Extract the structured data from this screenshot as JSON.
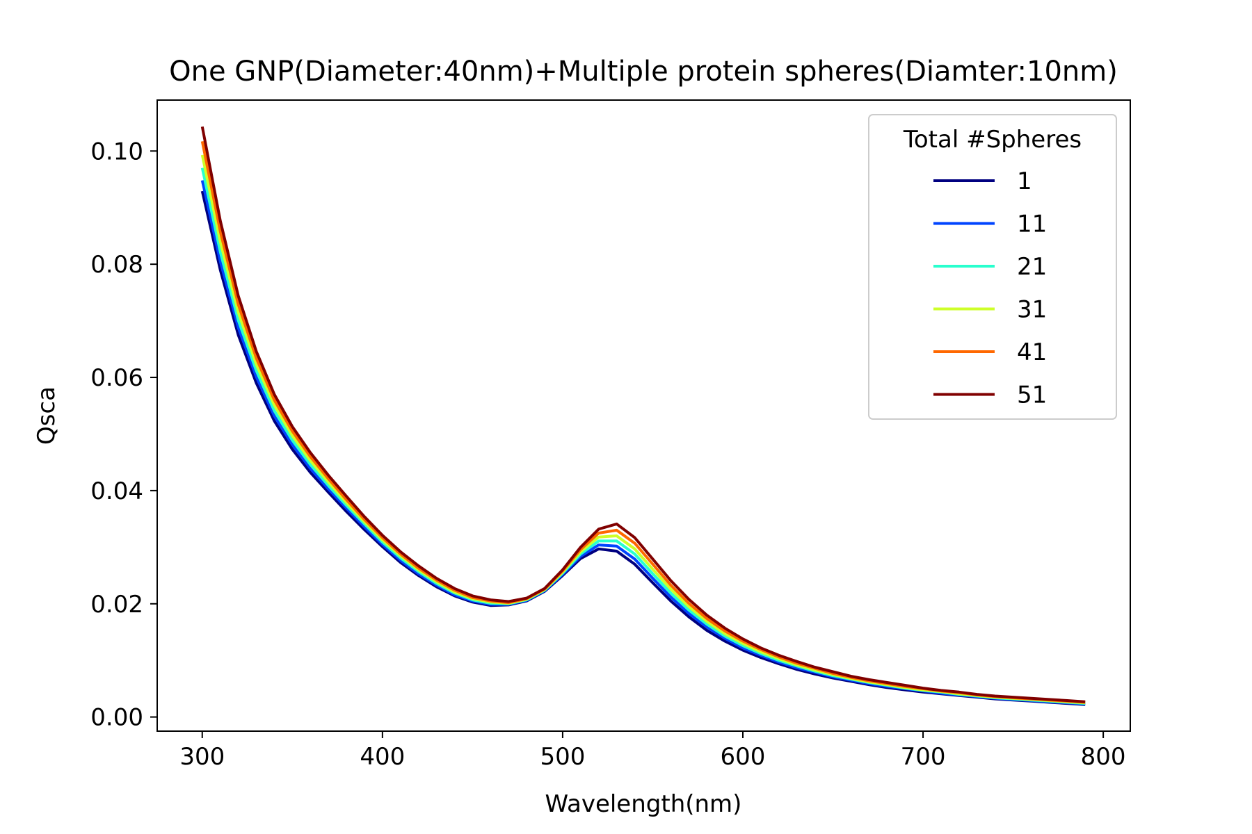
{
  "chart_data": {
    "type": "line",
    "title": "One GNP(Diameter:40nm)+Multiple protein spheres(Diamter:10nm)",
    "xlabel": "Wavelength(nm)",
    "ylabel": "Qsca",
    "xlim": [
      275,
      815
    ],
    "ylim": [
      -0.0025,
      0.109
    ],
    "xticks": [
      300,
      400,
      500,
      600,
      700,
      800
    ],
    "xtick_labels": [
      "300",
      "400",
      "500",
      "600",
      "700",
      "800"
    ],
    "yticks": [
      0.0,
      0.02,
      0.04,
      0.06,
      0.08,
      0.1
    ],
    "ytick_labels": [
      "0.00",
      "0.02",
      "0.04",
      "0.06",
      "0.08",
      "0.10"
    ],
    "grid": false,
    "legend": {
      "title": "Total #Spheres",
      "position": "top-right"
    },
    "x": [
      300,
      310,
      320,
      330,
      340,
      350,
      360,
      370,
      380,
      390,
      400,
      410,
      420,
      430,
      440,
      450,
      460,
      470,
      480,
      490,
      500,
      510,
      520,
      530,
      540,
      550,
      560,
      570,
      580,
      590,
      600,
      610,
      620,
      630,
      640,
      650,
      660,
      670,
      680,
      690,
      700,
      710,
      720,
      730,
      740,
      750,
      760,
      770,
      780,
      790
    ],
    "series": [
      {
        "name": "1",
        "color": "#000080",
        "values": [
          0.0929,
          0.079,
          0.0675,
          0.059,
          0.0523,
          0.0473,
          0.0432,
          0.0397,
          0.0363,
          0.0331,
          0.0301,
          0.0273,
          0.025,
          0.023,
          0.0214,
          0.0203,
          0.0197,
          0.0198,
          0.0205,
          0.0222,
          0.025,
          0.028,
          0.0297,
          0.0293,
          0.027,
          0.0237,
          0.0205,
          0.0177,
          0.0153,
          0.0134,
          0.0118,
          0.0105,
          0.0094,
          0.0084,
          0.0076,
          0.0069,
          0.0063,
          0.0057,
          0.0052,
          0.0048,
          0.0044,
          0.0041,
          0.0038,
          0.0035,
          0.0032,
          0.003,
          0.0028,
          0.0026,
          0.0024,
          0.0022
        ]
      },
      {
        "name": "11",
        "color": "#0044ff",
        "values": [
          0.0948,
          0.0805,
          0.0688,
          0.0601,
          0.0532,
          0.0481,
          0.0439,
          0.0403,
          0.0369,
          0.0336,
          0.0305,
          0.0277,
          0.0253,
          0.0233,
          0.0216,
          0.0205,
          0.0199,
          0.0199,
          0.0206,
          0.0223,
          0.0252,
          0.0284,
          0.0304,
          0.0302,
          0.0279,
          0.0245,
          0.0212,
          0.0183,
          0.0159,
          0.0139,
          0.0122,
          0.0109,
          0.0097,
          0.0087,
          0.0079,
          0.0071,
          0.0065,
          0.0059,
          0.0054,
          0.005,
          0.0046,
          0.0042,
          0.0039,
          0.0036,
          0.0033,
          0.0031,
          0.0029,
          0.0027,
          0.0025,
          0.0023
        ]
      },
      {
        "name": "21",
        "color": "#29ffce",
        "values": [
          0.097,
          0.0822,
          0.0701,
          0.0612,
          0.0541,
          0.0489,
          0.0446,
          0.0409,
          0.0374,
          0.0341,
          0.0309,
          0.0281,
          0.0257,
          0.0236,
          0.0219,
          0.0207,
          0.0201,
          0.02,
          0.0207,
          0.0224,
          0.0254,
          0.0288,
          0.0311,
          0.0311,
          0.0288,
          0.0253,
          0.0219,
          0.0189,
          0.0164,
          0.0143,
          0.0126,
          0.0112,
          0.01,
          0.009,
          0.0081,
          0.0073,
          0.0067,
          0.0061,
          0.0056,
          0.0051,
          0.0047,
          0.0044,
          0.004,
          0.0037,
          0.0034,
          0.0032,
          0.003,
          0.0028,
          0.0026,
          0.0024
        ]
      },
      {
        "name": "31",
        "color": "#ceff29",
        "values": [
          0.0993,
          0.084,
          0.0715,
          0.0623,
          0.0551,
          0.0497,
          0.0453,
          0.0415,
          0.0379,
          0.0345,
          0.0313,
          0.0285,
          0.026,
          0.0239,
          0.0221,
          0.0209,
          0.0203,
          0.0201,
          0.0208,
          0.0225,
          0.0256,
          0.0292,
          0.0318,
          0.032,
          0.0297,
          0.0261,
          0.0226,
          0.0195,
          0.0169,
          0.0147,
          0.013,
          0.0115,
          0.0103,
          0.0092,
          0.0083,
          0.0075,
          0.0068,
          0.0062,
          0.0057,
          0.0052,
          0.0048,
          0.0045,
          0.0041,
          0.0038,
          0.0035,
          0.0033,
          0.0031,
          0.0029,
          0.0027,
          0.0025
        ]
      },
      {
        "name": "41",
        "color": "#ff6800",
        "values": [
          0.1017,
          0.0858,
          0.0729,
          0.0634,
          0.056,
          0.0505,
          0.046,
          0.0421,
          0.0384,
          0.0349,
          0.0317,
          0.0288,
          0.0263,
          0.0242,
          0.0224,
          0.0211,
          0.0205,
          0.0202,
          0.0209,
          0.0226,
          0.0258,
          0.0296,
          0.0325,
          0.033,
          0.0307,
          0.027,
          0.0233,
          0.0201,
          0.0174,
          0.0152,
          0.0134,
          0.0119,
          0.0106,
          0.0095,
          0.0086,
          0.0077,
          0.007,
          0.0064,
          0.0059,
          0.0054,
          0.005,
          0.0046,
          0.0043,
          0.0039,
          0.0036,
          0.0034,
          0.0032,
          0.003,
          0.0028,
          0.0026
        ]
      },
      {
        "name": "51",
        "color": "#800000",
        "values": [
          0.1043,
          0.0877,
          0.0744,
          0.0646,
          0.057,
          0.0513,
          0.0467,
          0.0427,
          0.039,
          0.0354,
          0.0321,
          0.0292,
          0.0267,
          0.0245,
          0.0227,
          0.0214,
          0.0207,
          0.0204,
          0.021,
          0.0227,
          0.026,
          0.03,
          0.0332,
          0.0341,
          0.0317,
          0.0279,
          0.0241,
          0.0208,
          0.018,
          0.0157,
          0.0138,
          0.0122,
          0.0109,
          0.0098,
          0.0088,
          0.008,
          0.0072,
          0.0066,
          0.0061,
          0.0056,
          0.0051,
          0.0047,
          0.0044,
          0.004,
          0.0037,
          0.0035,
          0.0033,
          0.0031,
          0.0029,
          0.0027
        ]
      }
    ]
  }
}
